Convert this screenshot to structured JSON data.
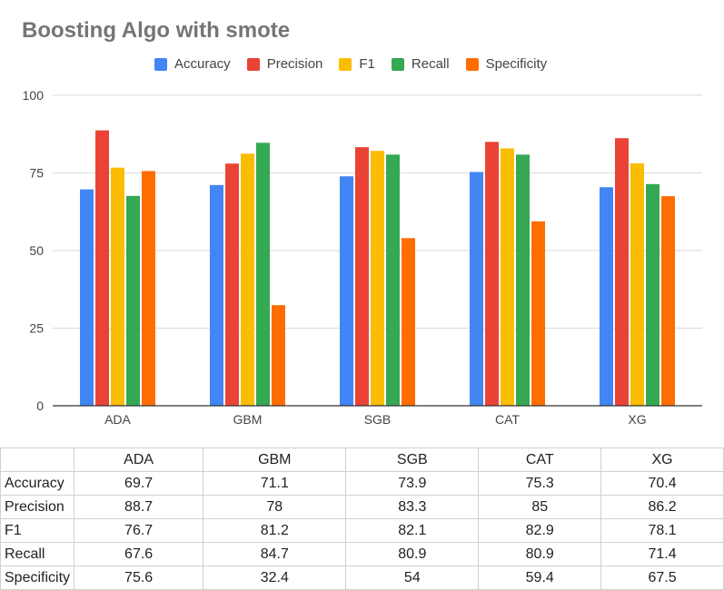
{
  "chart_data": {
    "type": "bar",
    "title": "Boosting Algo with smote",
    "categories": [
      "ADA",
      "GBM",
      "SGB",
      "CAT",
      "XG"
    ],
    "series": [
      {
        "name": "Accuracy",
        "color": "#4285F4",
        "values": [
          69.7,
          71.1,
          73.9,
          75.3,
          70.4
        ]
      },
      {
        "name": "Precision",
        "color": "#EA4335",
        "values": [
          88.7,
          78,
          83.3,
          85,
          86.2
        ]
      },
      {
        "name": "F1",
        "color": "#FBBC04",
        "values": [
          76.7,
          81.2,
          82.1,
          82.9,
          78.1
        ]
      },
      {
        "name": "Recall",
        "color": "#34A853",
        "values": [
          67.6,
          84.7,
          80.9,
          80.9,
          71.4
        ]
      },
      {
        "name": "Specificity",
        "color": "#FF6D01",
        "values": [
          75.6,
          32.4,
          54,
          59.4,
          67.5
        ]
      }
    ],
    "ylim": [
      0,
      100
    ],
    "yticks": [
      0,
      25,
      50,
      75,
      100
    ],
    "grid": true,
    "legend_position": "top"
  },
  "table": {
    "columns": [
      "ADA",
      "GBM",
      "SGB",
      "CAT",
      "XG"
    ],
    "rows": [
      {
        "label": "Accuracy",
        "cells": [
          "69.7",
          "71.1",
          "73.9",
          "75.3",
          "70.4"
        ]
      },
      {
        "label": "Precision",
        "cells": [
          "88.7",
          "78",
          "83.3",
          "85",
          "86.2"
        ]
      },
      {
        "label": "F1",
        "cells": [
          "76.7",
          "81.2",
          "82.1",
          "82.9",
          "78.1"
        ]
      },
      {
        "label": "Recall",
        "cells": [
          "67.6",
          "84.7",
          "80.9",
          "80.9",
          "71.4"
        ]
      },
      {
        "label": "Specificity",
        "cells": [
          "75.6",
          "32.4",
          "54",
          "59.4",
          "67.5"
        ]
      }
    ]
  }
}
